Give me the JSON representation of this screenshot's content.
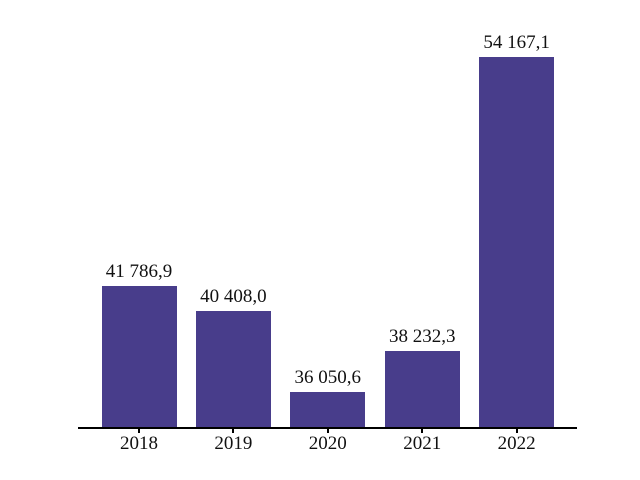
{
  "chart_data": {
    "type": "bar",
    "categories": [
      "2018",
      "2019",
      "2020",
      "2021",
      "2022"
    ],
    "values": [
      41786.9,
      40408.0,
      36050.6,
      38232.3,
      54167.1
    ],
    "value_labels": [
      "41 786,9",
      "40 408,0",
      "36 050,6",
      "38 232,3",
      "54 167,1"
    ],
    "title": "",
    "xlabel": "",
    "ylabel": "",
    "ylim": [
      34130,
      55850
    ],
    "bar_color": "#483D8B",
    "axis_color": "#000000",
    "text_color": "#111111",
    "grid": false,
    "legend": false
  }
}
